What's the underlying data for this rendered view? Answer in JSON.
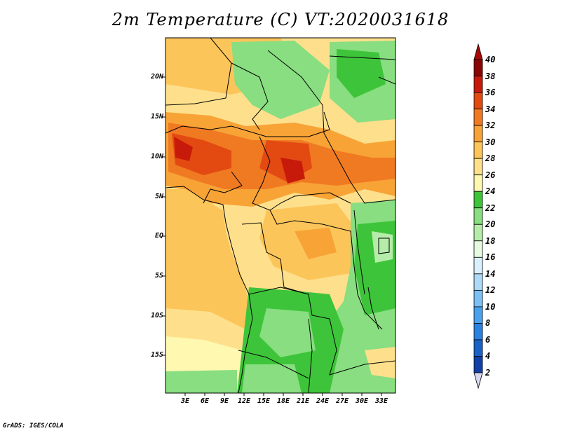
{
  "title": "2m Temperature (C) VT:2020031618",
  "credit": "GrADS: IGES/COLA",
  "lat_labels": [
    "20N",
    "15N",
    "10N",
    "5N",
    "EQ",
    "5S",
    "10S",
    "15S"
  ],
  "lon_labels": [
    "3E",
    "6E",
    "9E",
    "12E",
    "15E",
    "18E",
    "21E",
    "24E",
    "27E",
    "30E",
    "33E"
  ],
  "colorbar": {
    "labels": [
      "2",
      "4",
      "6",
      "8",
      "10",
      "12",
      "14",
      "16",
      "18",
      "20",
      "22",
      "24",
      "26",
      "28",
      "30",
      "32",
      "34",
      "36",
      "38",
      "40"
    ],
    "colors": [
      "#0a0a70",
      "#1040a8",
      "#1a62c8",
      "#2a82e0",
      "#4aa2ee",
      "#7cc0f4",
      "#acdaf8",
      "#daf0fc",
      "#e6fae2",
      "#b6ecaa",
      "#88de80",
      "#3ec43a",
      "#fef8b0",
      "#fee08c",
      "#fcc55a",
      "#f8a336",
      "#f07a22",
      "#e34a12",
      "#c81a0a",
      "#8c0505"
    ],
    "low_color": "#d8d8ee",
    "high_color": "#a80808"
  }
}
